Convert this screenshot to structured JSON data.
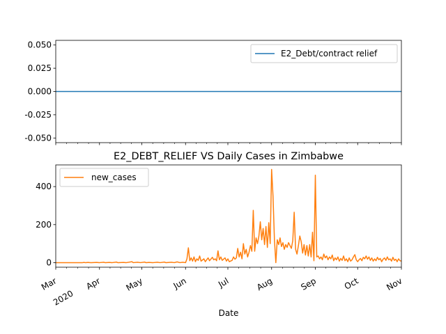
{
  "chart_data": [
    {
      "type": "line",
      "title": "",
      "xlabel": "",
      "ylabel": "",
      "ylim": [
        -0.055,
        0.055
      ],
      "yticks": [
        "0.050",
        "0.025",
        "0.000",
        "-0.025",
        "-0.050"
      ],
      "ytick_values": [
        0.05,
        0.025,
        0.0,
        -0.025,
        -0.05
      ],
      "legend_position": "upper right",
      "series": [
        {
          "name": "E2_Debt/contract relief",
          "color": "#1f77b4",
          "x": [
            "2020-03-01",
            "2020-11-01"
          ],
          "y": [
            0,
            0
          ]
        }
      ]
    },
    {
      "type": "line",
      "title": "E2_DEBT_RELIEF VS Daily Cases in Zimbabwe",
      "xlabel": "Date",
      "ylabel": "",
      "ylim": [
        -24,
        514
      ],
      "yticks": [
        "0",
        "200",
        "400"
      ],
      "ytick_values": [
        0,
        200,
        400
      ],
      "xticks": [
        "Mar",
        "Apr",
        "May",
        "Jun",
        "Jul",
        "Aug",
        "Sep",
        "Oct",
        "Nov"
      ],
      "xtick_dates": [
        "2020-03-01",
        "2020-04-01",
        "2020-05-01",
        "2020-06-01",
        "2020-07-01",
        "2020-08-01",
        "2020-09-01",
        "2020-10-01",
        "2020-11-01"
      ],
      "xtick_year_label": "2020",
      "legend_position": "upper left",
      "series": [
        {
          "name": "new_cases",
          "color": "#ff7f0e",
          "points": [
            [
              "2020-03-01",
              0
            ],
            [
              "2020-03-20",
              0
            ],
            [
              "2020-03-21",
              1
            ],
            [
              "2020-03-22",
              0
            ],
            [
              "2020-03-24",
              1
            ],
            [
              "2020-03-26",
              0
            ],
            [
              "2020-03-30",
              1
            ],
            [
              "2020-04-01",
              0
            ],
            [
              "2020-04-04",
              2
            ],
            [
              "2020-04-05",
              0
            ],
            [
              "2020-04-08",
              1
            ],
            [
              "2020-04-10",
              0
            ],
            [
              "2020-04-13",
              3
            ],
            [
              "2020-04-14",
              0
            ],
            [
              "2020-04-18",
              1
            ],
            [
              "2020-04-20",
              0
            ],
            [
              "2020-04-24",
              5
            ],
            [
              "2020-04-25",
              0
            ],
            [
              "2020-04-28",
              2
            ],
            [
              "2020-04-30",
              0
            ],
            [
              "2020-05-03",
              3
            ],
            [
              "2020-05-04",
              0
            ],
            [
              "2020-05-06",
              1
            ],
            [
              "2020-05-09",
              0
            ],
            [
              "2020-05-12",
              2
            ],
            [
              "2020-05-14",
              0
            ],
            [
              "2020-05-17",
              3
            ],
            [
              "2020-05-18",
              0
            ],
            [
              "2020-05-22",
              2
            ],
            [
              "2020-05-24",
              0
            ],
            [
              "2020-05-26",
              4
            ],
            [
              "2020-05-28",
              0
            ],
            [
              "2020-05-30",
              2
            ],
            [
              "2020-06-01",
              0
            ],
            [
              "2020-06-02",
              20
            ],
            [
              "2020-06-03",
              78
            ],
            [
              "2020-06-04",
              10
            ],
            [
              "2020-06-05",
              25
            ],
            [
              "2020-06-06",
              8
            ],
            [
              "2020-06-07",
              30
            ],
            [
              "2020-06-08",
              5
            ],
            [
              "2020-06-09",
              20
            ],
            [
              "2020-06-10",
              12
            ],
            [
              "2020-06-11",
              35
            ],
            [
              "2020-06-12",
              8
            ],
            [
              "2020-06-14",
              20
            ],
            [
              "2020-06-15",
              5
            ],
            [
              "2020-06-17",
              25
            ],
            [
              "2020-06-18",
              10
            ],
            [
              "2020-06-20",
              28
            ],
            [
              "2020-06-21",
              15
            ],
            [
              "2020-06-22",
              20
            ],
            [
              "2020-06-23",
              10
            ],
            [
              "2020-06-24",
              62
            ],
            [
              "2020-06-25",
              15
            ],
            [
              "2020-06-26",
              30
            ],
            [
              "2020-06-27",
              12
            ],
            [
              "2020-06-29",
              25
            ],
            [
              "2020-06-30",
              8
            ],
            [
              "2020-07-01",
              20
            ],
            [
              "2020-07-02",
              5
            ],
            [
              "2020-07-04",
              12
            ],
            [
              "2020-07-05",
              30
            ],
            [
              "2020-07-06",
              18
            ],
            [
              "2020-07-07",
              25
            ],
            [
              "2020-07-08",
              75
            ],
            [
              "2020-07-09",
              30
            ],
            [
              "2020-07-10",
              55
            ],
            [
              "2020-07-11",
              20
            ],
            [
              "2020-07-12",
              100
            ],
            [
              "2020-07-13",
              45
            ],
            [
              "2020-07-14",
              70
            ],
            [
              "2020-07-15",
              30
            ],
            [
              "2020-07-16",
              55
            ],
            [
              "2020-07-17",
              90
            ],
            [
              "2020-07-18",
              60
            ],
            [
              "2020-07-19",
              275
            ],
            [
              "2020-07-20",
              60
            ],
            [
              "2020-07-21",
              130
            ],
            [
              "2020-07-22",
              100
            ],
            [
              "2020-07-23",
              140
            ],
            [
              "2020-07-24",
              215
            ],
            [
              "2020-07-25",
              120
            ],
            [
              "2020-07-26",
              180
            ],
            [
              "2020-07-27",
              95
            ],
            [
              "2020-07-28",
              190
            ],
            [
              "2020-07-29",
              80
            ],
            [
              "2020-07-30",
              210
            ],
            [
              "2020-07-31",
              100
            ],
            [
              "2020-08-01",
              490
            ],
            [
              "2020-08-02",
              350
            ],
            [
              "2020-08-03",
              120
            ],
            [
              "2020-08-04",
              0
            ],
            [
              "2020-08-05",
              120
            ],
            [
              "2020-08-06",
              95
            ],
            [
              "2020-08-07",
              130
            ],
            [
              "2020-08-08",
              85
            ],
            [
              "2020-08-09",
              105
            ],
            [
              "2020-08-10",
              70
            ],
            [
              "2020-08-11",
              95
            ],
            [
              "2020-08-12",
              80
            ],
            [
              "2020-08-13",
              105
            ],
            [
              "2020-08-14",
              90
            ],
            [
              "2020-08-15",
              75
            ],
            [
              "2020-08-16",
              115
            ],
            [
              "2020-08-17",
              265
            ],
            [
              "2020-08-18",
              70
            ],
            [
              "2020-08-19",
              45
            ],
            [
              "2020-08-20",
              90
            ],
            [
              "2020-08-21",
              140
            ],
            [
              "2020-08-22",
              110
            ],
            [
              "2020-08-23",
              50
            ],
            [
              "2020-08-24",
              95
            ],
            [
              "2020-08-25",
              40
            ],
            [
              "2020-08-26",
              90
            ],
            [
              "2020-08-27",
              35
            ],
            [
              "2020-08-28",
              95
            ],
            [
              "2020-08-29",
              30
            ],
            [
              "2020-08-30",
              160
            ],
            [
              "2020-08-31",
              10
            ],
            [
              "2020-09-01",
              460
            ],
            [
              "2020-09-02",
              30
            ],
            [
              "2020-09-03",
              35
            ],
            [
              "2020-09-04",
              20
            ],
            [
              "2020-09-05",
              30
            ],
            [
              "2020-09-06",
              15
            ],
            [
              "2020-09-07",
              45
            ],
            [
              "2020-09-08",
              25
            ],
            [
              "2020-09-09",
              35
            ],
            [
              "2020-09-10",
              15
            ],
            [
              "2020-09-11",
              30
            ],
            [
              "2020-09-12",
              20
            ],
            [
              "2020-09-13",
              40
            ],
            [
              "2020-09-14",
              10
            ],
            [
              "2020-09-15",
              25
            ],
            [
              "2020-09-16",
              15
            ],
            [
              "2020-09-17",
              30
            ],
            [
              "2020-09-18",
              8
            ],
            [
              "2020-09-19",
              22
            ],
            [
              "2020-09-20",
              12
            ],
            [
              "2020-09-21",
              35
            ],
            [
              "2020-09-22",
              10
            ],
            [
              "2020-09-23",
              20
            ],
            [
              "2020-09-24",
              5
            ],
            [
              "2020-09-25",
              25
            ],
            [
              "2020-09-26",
              8
            ],
            [
              "2020-09-27",
              15
            ],
            [
              "2020-09-28",
              30
            ],
            [
              "2020-09-29",
              42
            ],
            [
              "2020-09-30",
              15
            ],
            [
              "2020-10-01",
              5
            ],
            [
              "2020-10-02",
              15
            ],
            [
              "2020-10-03",
              22
            ],
            [
              "2020-10-04",
              10
            ],
            [
              "2020-10-05",
              28
            ],
            [
              "2020-10-06",
              20
            ],
            [
              "2020-10-07",
              35
            ],
            [
              "2020-10-08",
              18
            ],
            [
              "2020-10-09",
              30
            ],
            [
              "2020-10-10",
              12
            ],
            [
              "2020-10-11",
              25
            ],
            [
              "2020-10-12",
              8
            ],
            [
              "2020-10-13",
              20
            ],
            [
              "2020-10-14",
              10
            ],
            [
              "2020-10-15",
              28
            ],
            [
              "2020-10-16",
              15
            ],
            [
              "2020-10-17",
              22
            ],
            [
              "2020-10-18",
              5
            ],
            [
              "2020-10-19",
              18
            ],
            [
              "2020-10-20",
              25
            ],
            [
              "2020-10-21",
              12
            ],
            [
              "2020-10-22",
              30
            ],
            [
              "2020-10-23",
              15
            ],
            [
              "2020-10-24",
              20
            ],
            [
              "2020-10-25",
              8
            ],
            [
              "2020-10-26",
              28
            ],
            [
              "2020-10-27",
              12
            ],
            [
              "2020-10-28",
              18
            ],
            [
              "2020-10-29",
              5
            ],
            [
              "2020-10-30",
              20
            ],
            [
              "2020-10-31",
              10
            ],
            [
              "2020-11-01",
              8
            ]
          ]
        }
      ]
    }
  ]
}
